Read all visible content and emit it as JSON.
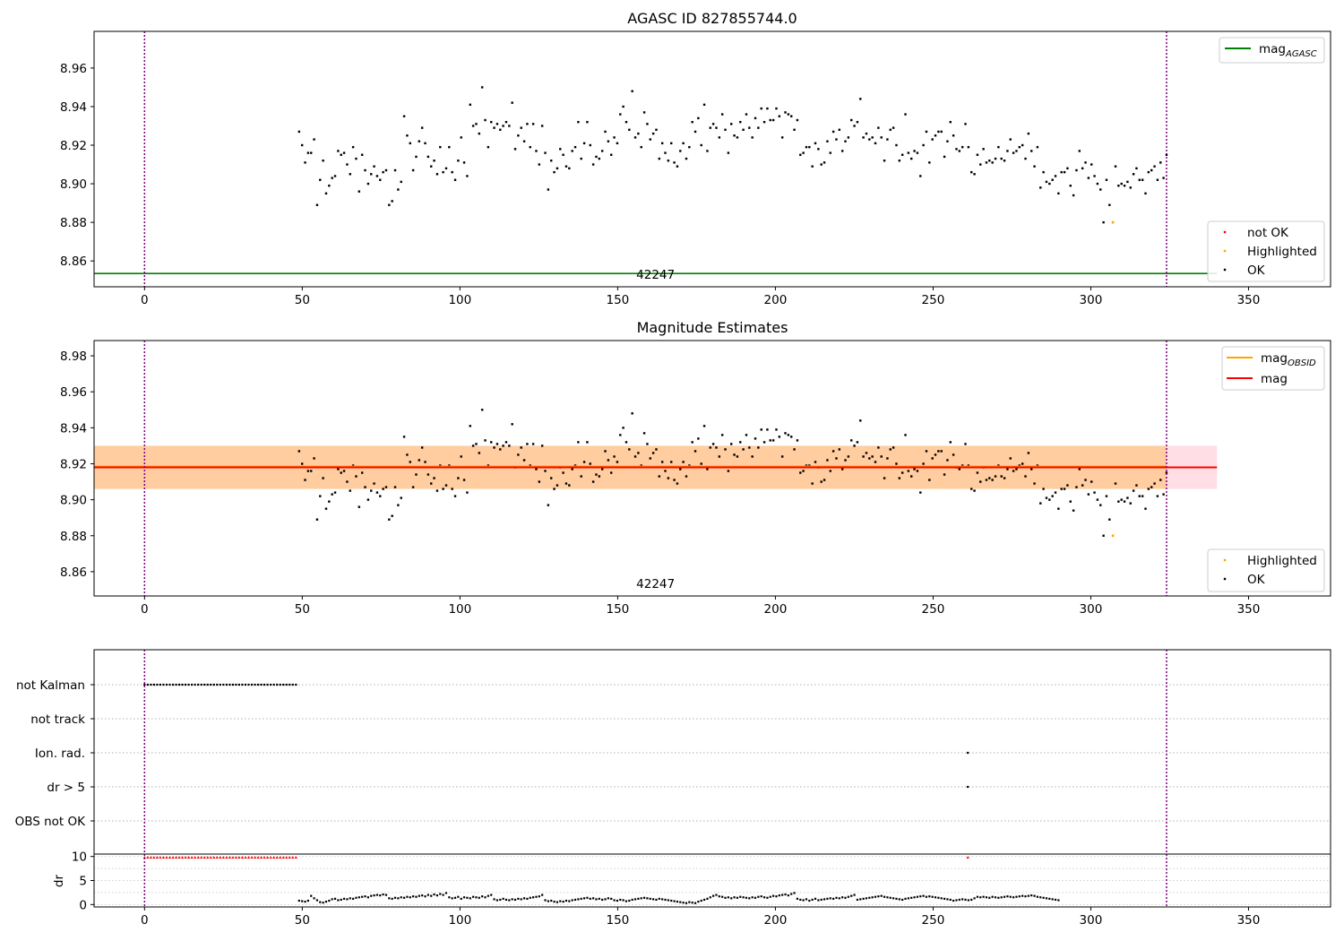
{
  "chart_data": [
    {
      "id": "top",
      "type": "scatter",
      "title": "AGASC ID 827855744.0",
      "xlim": [
        -16,
        376
      ],
      "ylim": [
        8.8466,
        8.979
      ],
      "xticks": [
        0,
        50,
        100,
        150,
        200,
        250,
        300,
        350
      ],
      "yticks": [
        8.86,
        8.88,
        8.9,
        8.92,
        8.94,
        8.96
      ],
      "vlines": [
        0,
        324
      ],
      "obsid_label": "42247",
      "obsid_label_x": 162,
      "hlines": [
        {
          "name": "mag_AGASC",
          "value": 8.8535,
          "x0": -16,
          "x1": 340,
          "color": "#008000"
        }
      ],
      "legend_lines": [
        {
          "label": "mag",
          "sub": "AGASC",
          "color": "#008000"
        }
      ],
      "legend_points": [
        {
          "label": "not OK",
          "color": "#ff0000"
        },
        {
          "label": "Highlighted",
          "color": "#ffa500"
        },
        {
          "label": "OK",
          "color": "#000000"
        }
      ],
      "highlighted": [
        [
          307,
          8.88
        ]
      ]
    },
    {
      "id": "mid",
      "type": "scatter",
      "title": "Magnitude Estimates",
      "xlim": [
        -16,
        376
      ],
      "ylim": [
        8.8465,
        8.9885
      ],
      "xticks": [
        0,
        50,
        100,
        150,
        200,
        250,
        300,
        350
      ],
      "yticks": [
        8.86,
        8.88,
        8.9,
        8.92,
        8.94,
        8.96,
        8.98
      ],
      "vlines": [
        0,
        324
      ],
      "obsid_label": "42247",
      "obsid_label_x": 162,
      "bands": [
        {
          "name": "mag_band",
          "y0": 8.906,
          "y1": 8.93,
          "x0": -16,
          "x1": 340,
          "color": "#ffc0cb",
          "opacity": 0.5
        },
        {
          "name": "mag_obsid_band",
          "y0": 8.906,
          "y1": 8.93,
          "x0": -16,
          "x1": 324,
          "color": "#ffa500",
          "opacity": 0.3
        }
      ],
      "hlines": [
        {
          "name": "mag_OBSID",
          "value": 8.9185,
          "x0": -16,
          "x1": 324,
          "color": "#ffa500"
        },
        {
          "name": "mag",
          "value": 8.918,
          "x0": -16,
          "x1": 340,
          "color": "#ff0000"
        }
      ],
      "legend_lines": [
        {
          "label": "mag",
          "sub": "OBSID",
          "color": "#ffa500"
        },
        {
          "label": "mag",
          "sub": "",
          "color": "#ff0000"
        }
      ],
      "legend_points": [
        {
          "label": "Highlighted",
          "color": "#ffa500"
        },
        {
          "label": "OK",
          "color": "#000000"
        }
      ],
      "highlighted": [
        [
          307,
          8.88
        ]
      ]
    },
    {
      "id": "flags",
      "type": "scatter",
      "xlim": [
        -16,
        376
      ],
      "categories": [
        "not Kalman",
        "not track",
        "Ion. rad.",
        "dr > 5",
        "OBS not OK"
      ],
      "vlines": [
        0,
        324
      ],
      "points": {
        "not Kalman": {
          "x_start": 0,
          "x_end": 48,
          "step": 1
        },
        "Ion. rad.": [
          261
        ],
        "dr > 5": [
          261
        ]
      }
    },
    {
      "id": "dr",
      "type": "scatter",
      "ylabel": "dr",
      "xlim": [
        -16,
        376
      ],
      "ylim": [
        -0.5,
        10.5
      ],
      "yticks": [
        0,
        5,
        10
      ],
      "xticks": [
        0,
        50,
        100,
        150,
        200,
        250,
        300,
        350
      ],
      "vlines": [
        0,
        324
      ],
      "red_points": {
        "x_start": 0,
        "x_end": 48,
        "y": 9.8,
        "extra": [
          261
        ]
      }
    }
  ],
  "mag_series": [
    8.927,
    8.92,
    8.911,
    8.916,
    8.916,
    8.923,
    8.889,
    8.902,
    8.912,
    8.895,
    8.899,
    8.903,
    8.904,
    8.917,
    8.915,
    8.916,
    8.91,
    8.905,
    8.919,
    8.913,
    8.896,
    8.915,
    8.907,
    8.9,
    8.905,
    8.909,
    8.904,
    8.902,
    8.906,
    8.907,
    8.889,
    8.891,
    8.907,
    8.897,
    8.901,
    8.935,
    8.925,
    8.921,
    8.907,
    8.914,
    8.922,
    8.929,
    8.921,
    8.914,
    8.909,
    8.912,
    8.905,
    8.919,
    8.906,
    8.908,
    8.919,
    8.906,
    8.902,
    8.912,
    8.924,
    8.911,
    8.904,
    8.941,
    8.93,
    8.931,
    8.926,
    8.95,
    8.933,
    8.919,
    8.932,
    8.929,
    8.931,
    8.928,
    8.93,
    8.932,
    8.93,
    8.942,
    8.918,
    8.925,
    8.929,
    8.922,
    8.931,
    8.919,
    8.931,
    8.917,
    8.91,
    8.93,
    8.916,
    8.897,
    8.912,
    8.906,
    8.908,
    8.918,
    8.915,
    8.909,
    8.908,
    8.917,
    8.919,
    8.932,
    8.913,
    8.921,
    8.932,
    8.92,
    8.91,
    8.914,
    8.913,
    8.917,
    8.927,
    8.922,
    8.915,
    8.924,
    8.921,
    8.936,
    8.94,
    8.932,
    8.928,
    8.948,
    8.924,
    8.926,
    8.919,
    8.937,
    8.931,
    8.923,
    8.926,
    8.928,
    8.913,
    8.921,
    8.916,
    8.912,
    8.921,
    8.911,
    8.909,
    8.917,
    8.921,
    8.913,
    8.919,
    8.932,
    8.927,
    8.934,
    8.92,
    8.941,
    8.917,
    8.929,
    8.931,
    8.929,
    8.924,
    8.936,
    8.928,
    8.916,
    8.931,
    8.925,
    8.924,
    8.932,
    8.928,
    8.936,
    8.929,
    8.924,
    8.934,
    8.929,
    8.939,
    8.932,
    8.939,
    8.933,
    8.933,
    8.939,
    8.935,
    8.924,
    8.937,
    8.936,
    8.935,
    8.928,
    8.933,
    8.915,
    8.916,
    8.919,
    8.919,
    8.909,
    8.921,
    8.918,
    8.91,
    8.911,
    8.922,
    8.916,
    8.927,
    8.923,
    8.928,
    8.917,
    8.922,
    8.924,
    8.933,
    8.93,
    8.932,
    8.944,
    8.924,
    8.926,
    8.923,
    8.924,
    8.921,
    8.929,
    8.924,
    8.912,
    8.923,
    8.928,
    8.929,
    8.92,
    8.912,
    8.915,
    8.936,
    8.916,
    8.913,
    8.917,
    8.916,
    8.904,
    8.92,
    8.927,
    8.911,
    8.923,
    8.925,
    8.927,
    8.927,
    8.914,
    8.922,
    8.932,
    8.925,
    8.918,
    8.917,
    8.919,
    8.931,
    8.919,
    8.906,
    8.905,
    8.915,
    8.91,
    8.918,
    8.911,
    8.912,
    8.911,
    8.913,
    8.919,
    8.913,
    8.912,
    8.917,
    8.923,
    8.916,
    8.917,
    8.919,
    8.92,
    8.913,
    8.926,
    8.917,
    8.909,
    8.919,
    8.898,
    8.906,
    8.901,
    8.9,
    8.902,
    8.904,
    8.895,
    8.906,
    8.906,
    8.908,
    8.899,
    8.894,
    8.907,
    8.917,
    8.908,
    8.911,
    8.903,
    8.91,
    8.904,
    8.9,
    8.897,
    8.88,
    8.902,
    8.889,
    8.9,
    8.909,
    8.899,
    8.9,
    8.899,
    8.901,
    8.898,
    8.905,
    8.908,
    8.902,
    8.902,
    8.895,
    8.906,
    8.907,
    8.909,
    8.902,
    8.911,
    8.903,
    8.915
  ],
  "dr_series": [
    0.8,
    0.7,
    0.6,
    0.8,
    1.8,
    1.3,
    0.9,
    0.5,
    0.4,
    0.6,
    0.8,
    1.1,
    1.2,
    0.9,
    1.0,
    1.2,
    1.1,
    1.3,
    1.2,
    1.4,
    1.5,
    1.6,
    1.7,
    1.5,
    1.8,
    1.9,
    2.0,
    1.9,
    2.1,
    2.0,
    1.3,
    1.2,
    1.4,
    1.3,
    1.5,
    1.4,
    1.6,
    1.5,
    1.7,
    1.6,
    1.8,
    1.9,
    1.7,
    2.0,
    1.8,
    2.1,
    1.9,
    2.2,
    2.0,
    2.4,
    1.5,
    1.3,
    1.4,
    1.6,
    1.2,
    1.5,
    1.4,
    1.3,
    1.6,
    1.5,
    1.4,
    1.7,
    1.5,
    1.8,
    2.0,
    1.1,
    0.9,
    1.0,
    1.2,
    1.0,
    0.9,
    1.1,
    1.0,
    1.2,
    1.1,
    1.3,
    1.2,
    1.4,
    1.5,
    1.6,
    1.7,
    2.0,
    0.9,
    0.7,
    0.8,
    0.6,
    0.5,
    0.7,
    0.6,
    0.8,
    0.7,
    0.9,
    1.0,
    1.1,
    1.2,
    1.3,
    1.4,
    1.2,
    1.3,
    1.1,
    1.2,
    1.0,
    1.1,
    1.3,
    1.2,
    0.9,
    0.8,
    1.0,
    0.9,
    0.7,
    0.8,
    1.0,
    1.1,
    1.2,
    1.3,
    1.4,
    1.3,
    1.2,
    1.1,
    1.0,
    1.2,
    1.1,
    1.0,
    0.9,
    0.8,
    0.7,
    0.6,
    0.5,
    0.4,
    0.3,
    0.5,
    0.4,
    0.3,
    0.6,
    0.8,
    1.0,
    1.2,
    1.5,
    1.8,
    2.0,
    1.7,
    1.6,
    1.4,
    1.5,
    1.3,
    1.5,
    1.4,
    1.6,
    1.5,
    1.4,
    1.3,
    1.5,
    1.4,
    1.6,
    1.7,
    1.5,
    1.4,
    1.6,
    1.8,
    1.7,
    1.9,
    2.0,
    2.1,
    1.9,
    2.2,
    2.4,
    1.2,
    1.0,
    0.9,
    1.1,
    0.8,
    1.0,
    1.2,
    0.9,
    1.0,
    1.1,
    1.2,
    1.3,
    1.2,
    1.4,
    1.3,
    1.5,
    1.4,
    1.6,
    1.8,
    2.0,
    1.0,
    1.1,
    1.2,
    1.3,
    1.4,
    1.5,
    1.6,
    1.7,
    1.8,
    1.6,
    1.5,
    1.4,
    1.3,
    1.2,
    1.1,
    1.0,
    1.2,
    1.3,
    1.4,
    1.5,
    1.6,
    1.7,
    1.8,
    1.6,
    1.7,
    1.6,
    1.5,
    1.4,
    1.3,
    1.2,
    1.1,
    1.0,
    0.8,
    0.9,
    1.0,
    1.1,
    1.0,
    0.9,
    1.0,
    1.3,
    1.6,
    1.5,
    1.6,
    1.5,
    1.4,
    1.6,
    1.5,
    1.4,
    1.5,
    1.6,
    1.7,
    1.6,
    1.5,
    1.6,
    1.7,
    1.8,
    1.7,
    1.8,
    1.9,
    1.8,
    1.6,
    1.5,
    1.4,
    1.3,
    1.2,
    1.1,
    1.0,
    0.9
  ]
}
